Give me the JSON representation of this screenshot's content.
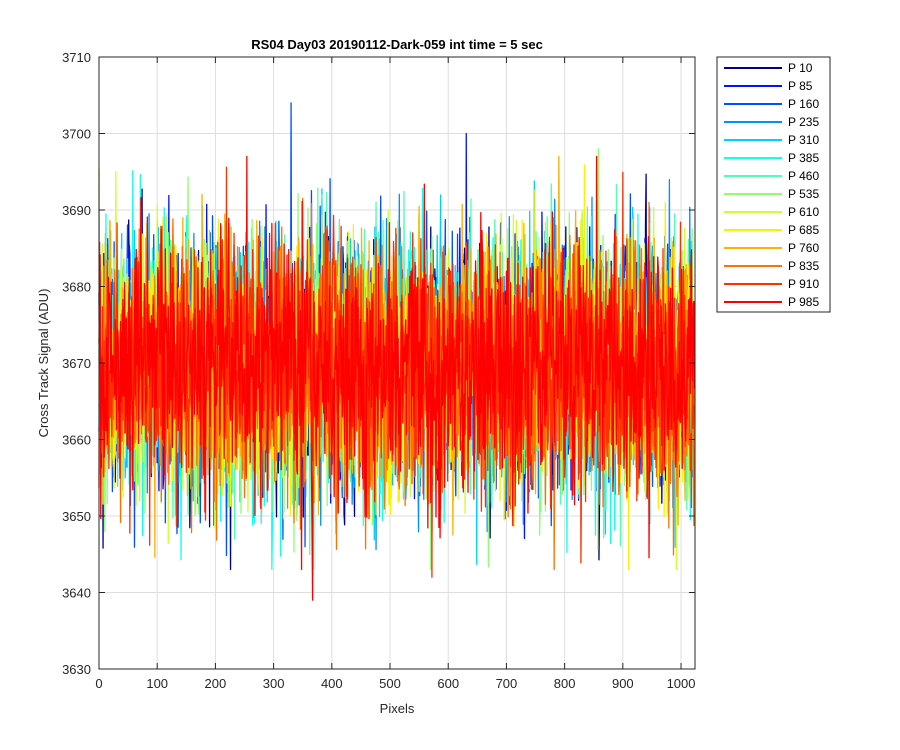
{
  "chart_data": {
    "type": "line",
    "title": "RS04 Day03 20190112-Dark-059 int time = 5 sec",
    "xlabel": "Pixels",
    "ylabel": "Cross Track Signal (ADU)",
    "xlim": [
      0,
      1024
    ],
    "ylim": [
      3630,
      3710
    ],
    "xticks": [
      0,
      100,
      200,
      300,
      400,
      500,
      600,
      700,
      800,
      900,
      1000
    ],
    "yticks": [
      3630,
      3640,
      3650,
      3660,
      3670,
      3680,
      3690,
      3700,
      3710
    ],
    "grid": true,
    "legend_position": "outside-top-right",
    "n_points": 1024,
    "noise": {
      "mean": 3669.5,
      "sigma": 8
    },
    "series": [
      {
        "name": "P 10",
        "color": "#00008f"
      },
      {
        "name": "P 85",
        "color": "#0012ff"
      },
      {
        "name": "P 160",
        "color": "#0050ff"
      },
      {
        "name": "P 235",
        "color": "#0090ff"
      },
      {
        "name": "P 310",
        "color": "#00cfff"
      },
      {
        "name": "P 385",
        "color": "#10ffef"
      },
      {
        "name": "P 460",
        "color": "#50ffaf"
      },
      {
        "name": "P 535",
        "color": "#8fff70"
      },
      {
        "name": "P 610",
        "color": "#cfff30"
      },
      {
        "name": "P 685",
        "color": "#ffef00"
      },
      {
        "name": "P 760",
        "color": "#ffb000"
      },
      {
        "name": "P 835",
        "color": "#ff7000"
      },
      {
        "name": "P 910",
        "color": "#ff3000"
      },
      {
        "name": "P 985",
        "color": "#ff0000"
      }
    ],
    "annotated_extremes": [
      {
        "series": "P 160",
        "x": 330,
        "y": 3704
      },
      {
        "series": "P 985",
        "x": 367,
        "y": 3639
      },
      {
        "series": "P 910",
        "x": 572,
        "y": 3642
      },
      {
        "series": "P 85",
        "x": 631,
        "y": 3700
      },
      {
        "series": "P 535",
        "x": 858,
        "y": 3698
      }
    ]
  }
}
